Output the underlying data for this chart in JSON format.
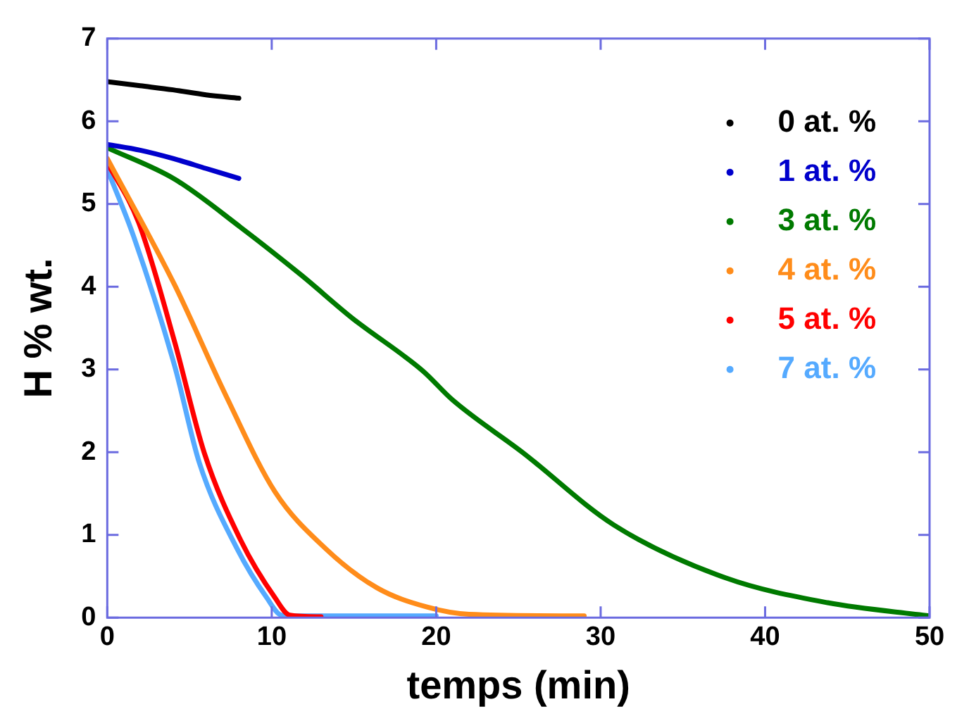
{
  "chart_data": {
    "type": "line",
    "xlabel": "temps (min)",
    "ylabel": "H % wt.",
    "xlim": [
      0,
      50
    ],
    "ylim": [
      0,
      7
    ],
    "xticks": [
      0,
      10,
      20,
      30,
      40,
      50
    ],
    "yticks": [
      0,
      1,
      2,
      3,
      4,
      5,
      6,
      7
    ],
    "legend": "top right",
    "marker": "none",
    "line_style": "solid",
    "series": [
      {
        "name": "0 at. %",
        "color": "#000000",
        "x": [
          0,
          2,
          4,
          6,
          8
        ],
        "values": [
          6.48,
          6.43,
          6.38,
          6.32,
          6.28
        ]
      },
      {
        "name": "1 at. %",
        "color": "#0000cc",
        "x": [
          0,
          2,
          4,
          6,
          8
        ],
        "values": [
          5.72,
          5.65,
          5.55,
          5.43,
          5.31
        ]
      },
      {
        "name": "3 at. %",
        "color": "#007a00",
        "x": [
          0,
          4.1,
          8.1,
          11.8,
          14.9,
          19.2,
          21,
          25.3,
          30.8,
          37.6,
          43.8,
          50
        ],
        "values": [
          5.68,
          5.3,
          4.72,
          4.14,
          3.62,
          2.98,
          2.63,
          1.99,
          1.12,
          0.48,
          0.18,
          0.02
        ]
      },
      {
        "name": "4 at. %",
        "color": "#ff8c1a",
        "x": [
          0,
          4.1,
          7.2,
          10.2,
          13.3,
          16.4,
          19.4,
          22,
          29
        ],
        "values": [
          5.55,
          4.02,
          2.69,
          1.52,
          0.83,
          0.36,
          0.13,
          0.04,
          0.02
        ]
      },
      {
        "name": "5 at. %",
        "color": "#ff0000",
        "x": [
          0,
          1.9,
          4.1,
          5.9,
          8.1,
          10.2,
          11.1,
          13
        ],
        "values": [
          5.5,
          4.78,
          3.33,
          1.99,
          0.94,
          0.24,
          0.03,
          0.01
        ]
      },
      {
        "name": "7 at. %",
        "color": "#55aaff",
        "x": [
          0,
          1.6,
          4.1,
          5.6,
          7.9,
          9.7,
          10.6,
          12,
          20
        ],
        "values": [
          5.42,
          4.61,
          3.04,
          1.87,
          0.83,
          0.24,
          0.03,
          0.02,
          0.02
        ]
      }
    ]
  }
}
